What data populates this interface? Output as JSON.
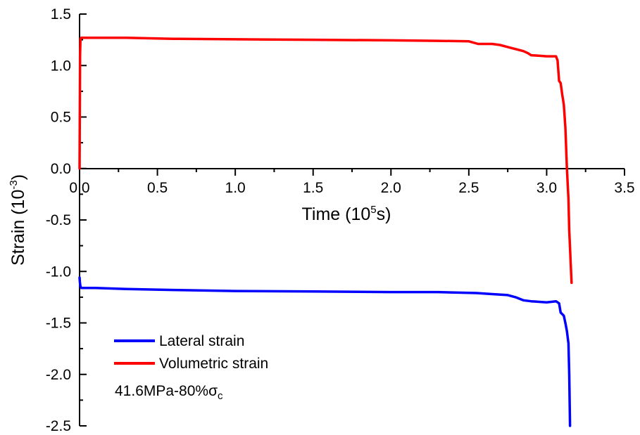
{
  "chart_data": {
    "type": "line",
    "xlabel": {
      "main": "Time (10",
      "sup": "5",
      "tail": "s)"
    },
    "ylabel": {
      "main": "Strain (10",
      "sup": "-3",
      "tail": ")"
    },
    "xlim": [
      0,
      3.5
    ],
    "ylim": [
      -2.5,
      1.5
    ],
    "x_ticks": [
      "0.0",
      "0.5",
      "1.0",
      "1.5",
      "2.0",
      "2.5",
      "3.0",
      "3.5"
    ],
    "y_ticks": [
      "1.5",
      "1.0",
      "0.5",
      "0.0",
      "-0.5",
      "-1.0",
      "-1.5",
      "-2.0",
      "-2.5"
    ],
    "x_tick_values": [
      0.0,
      0.5,
      1.0,
      1.5,
      2.0,
      2.5,
      3.0,
      3.5
    ],
    "y_tick_values": [
      1.5,
      1.0,
      0.5,
      0.0,
      -0.5,
      -1.0,
      -1.5,
      -2.0,
      -2.5
    ],
    "grid": false,
    "legend_position": "bottom-left",
    "series": [
      {
        "name": "Lateral strain",
        "color": "#0000ff",
        "x": [
          0.0,
          0.002,
          0.005,
          0.01,
          0.03,
          0.1,
          0.3,
          0.6,
          1.0,
          1.5,
          2.0,
          2.3,
          2.55,
          2.65,
          2.75,
          2.8,
          2.85,
          2.9,
          3.0,
          3.06,
          3.08,
          3.09,
          3.11,
          3.12,
          3.13,
          3.14,
          3.145,
          3.15
        ],
        "y": [
          -1.06,
          -1.1,
          -1.14,
          -1.16,
          -1.16,
          -1.16,
          -1.17,
          -1.18,
          -1.19,
          -1.195,
          -1.2,
          -1.2,
          -1.21,
          -1.22,
          -1.23,
          -1.25,
          -1.28,
          -1.29,
          -1.3,
          -1.29,
          -1.31,
          -1.4,
          -1.43,
          -1.5,
          -1.58,
          -1.7,
          -2.0,
          -2.5
        ]
      },
      {
        "name": "Volumetric strain",
        "color": "#ff0000",
        "x": [
          0.0,
          0.003,
          0.006,
          0.01,
          0.03,
          0.1,
          0.3,
          0.6,
          1.0,
          1.5,
          2.0,
          2.3,
          2.5,
          2.56,
          2.65,
          2.7,
          2.75,
          2.8,
          2.85,
          2.88,
          2.9,
          2.95,
          3.0,
          3.06,
          3.07,
          3.08,
          3.09,
          3.1,
          3.11,
          3.12,
          3.13,
          3.14,
          3.145,
          3.16
        ],
        "y": [
          0.0,
          1.1,
          1.26,
          1.27,
          1.27,
          1.27,
          1.27,
          1.26,
          1.255,
          1.25,
          1.245,
          1.24,
          1.235,
          1.21,
          1.21,
          1.2,
          1.18,
          1.16,
          1.14,
          1.12,
          1.1,
          1.095,
          1.09,
          1.09,
          1.05,
          0.85,
          0.83,
          0.72,
          0.62,
          0.4,
          0.0,
          -0.3,
          -0.6,
          -1.11
        ]
      }
    ],
    "annotation": {
      "main": "41.6MPa-80%σ",
      "sub": "c"
    }
  }
}
